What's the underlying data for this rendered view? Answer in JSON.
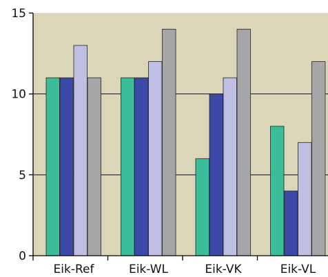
{
  "chart_data": {
    "type": "bar",
    "categories": [
      "Eik-Ref",
      "Eik-WL",
      "Eik-VK",
      "Eik-VL"
    ],
    "series": [
      {
        "values": [
          11,
          11,
          6,
          8
        ],
        "color": "#3bbd9a"
      },
      {
        "values": [
          11,
          11,
          10,
          4
        ],
        "color": "#3d49a6"
      },
      {
        "values": [
          13,
          12,
          11,
          7
        ],
        "color": "#bebfe2"
      },
      {
        "values": [
          11,
          14,
          14,
          12
        ],
        "color": "#a6a6a8"
      }
    ],
    "yticks": [
      0,
      5,
      10,
      15
    ],
    "ylim": [
      0,
      15
    ],
    "grid": true,
    "plot_background": "#dcd6b9",
    "title": "",
    "xlabel": "",
    "ylabel": ""
  }
}
